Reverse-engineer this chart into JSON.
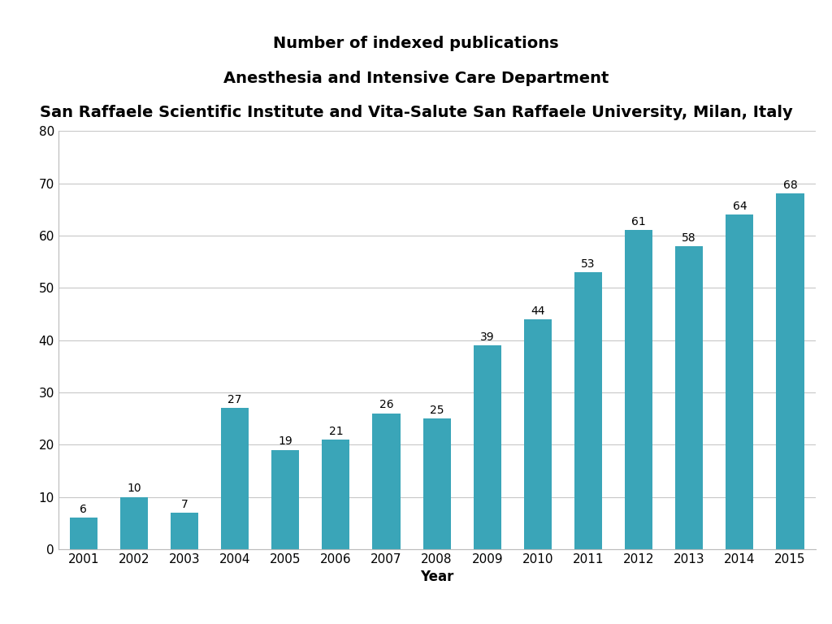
{
  "title_lines": [
    "Number of indexed publications",
    "Anesthesia and Intensive Care Department",
    "San Raffaele Scientific Institute and Vita-Salute San Raffaele University, Milan, Italy"
  ],
  "years": [
    2001,
    2002,
    2003,
    2004,
    2005,
    2006,
    2007,
    2008,
    2009,
    2010,
    2011,
    2012,
    2013,
    2014,
    2015
  ],
  "values": [
    6,
    10,
    7,
    27,
    19,
    21,
    26,
    25,
    39,
    44,
    53,
    61,
    58,
    64,
    68
  ],
  "bar_color": "#3aa5b8",
  "ylim": [
    0,
    80
  ],
  "yticks": [
    0,
    10,
    20,
    30,
    40,
    50,
    60,
    70,
    80
  ],
  "xlabel": "Year",
  "background_color": "#ffffff",
  "grid_color": "#c8c8c8",
  "title_fontsize": 14,
  "xlabel_fontsize": 12,
  "tick_fontsize": 11,
  "bar_label_fontsize": 10,
  "bar_width": 0.55
}
